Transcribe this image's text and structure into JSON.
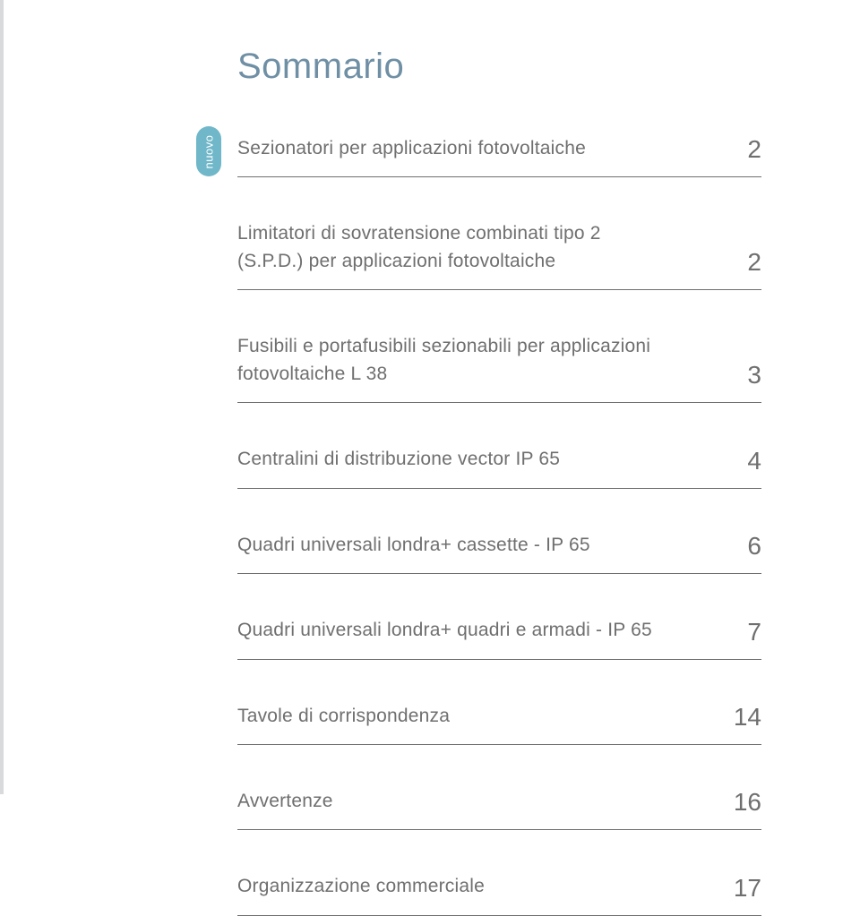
{
  "colors": {
    "title": "#6f8fa5",
    "body_text": "#6f6f6f",
    "page_number": "#6f6f6f",
    "rule": "#6f6f6f",
    "badge_bg": "#6fb7c9",
    "badge_text": "#ffffff",
    "background": "#ffffff"
  },
  "typography": {
    "title_fontsize": 40,
    "label_fontsize": 21,
    "page_fontsize": 28,
    "badge_fontsize": 13,
    "font_weight": 300
  },
  "title": "Sommario",
  "badge": {
    "text": "nuovo"
  },
  "toc": [
    {
      "label": "Sezionatori per applicazioni fotovoltaiche",
      "page": "2",
      "gap_after": true
    },
    {
      "label": "Limitatori di sovratensione combinati tipo 2 (S.P.D.) per applicazioni fotovoltaiche",
      "page": "2",
      "gap_after": true
    },
    {
      "label": "Fusibili e portafusibili sezionabili per applicazioni fotovoltaiche L 38",
      "page": "3",
      "gap_after": true
    },
    {
      "label": "Centralini di distribuzione vector IP 65",
      "page": "4",
      "gap_after": true
    },
    {
      "label": "Quadri universali londra+ cassette - IP 65",
      "page": "6",
      "gap_after": true
    },
    {
      "label": "Quadri universali londra+ quadri e armadi - IP 65",
      "page": "7",
      "gap_after": true
    },
    {
      "label": "Tavole di corrispondenza",
      "page": "14",
      "gap_after": true
    },
    {
      "label": "Avvertenze",
      "page": "16",
      "gap_after": true
    },
    {
      "label": "Organizzazione commerciale",
      "page": "17",
      "gap_after": false
    }
  ]
}
